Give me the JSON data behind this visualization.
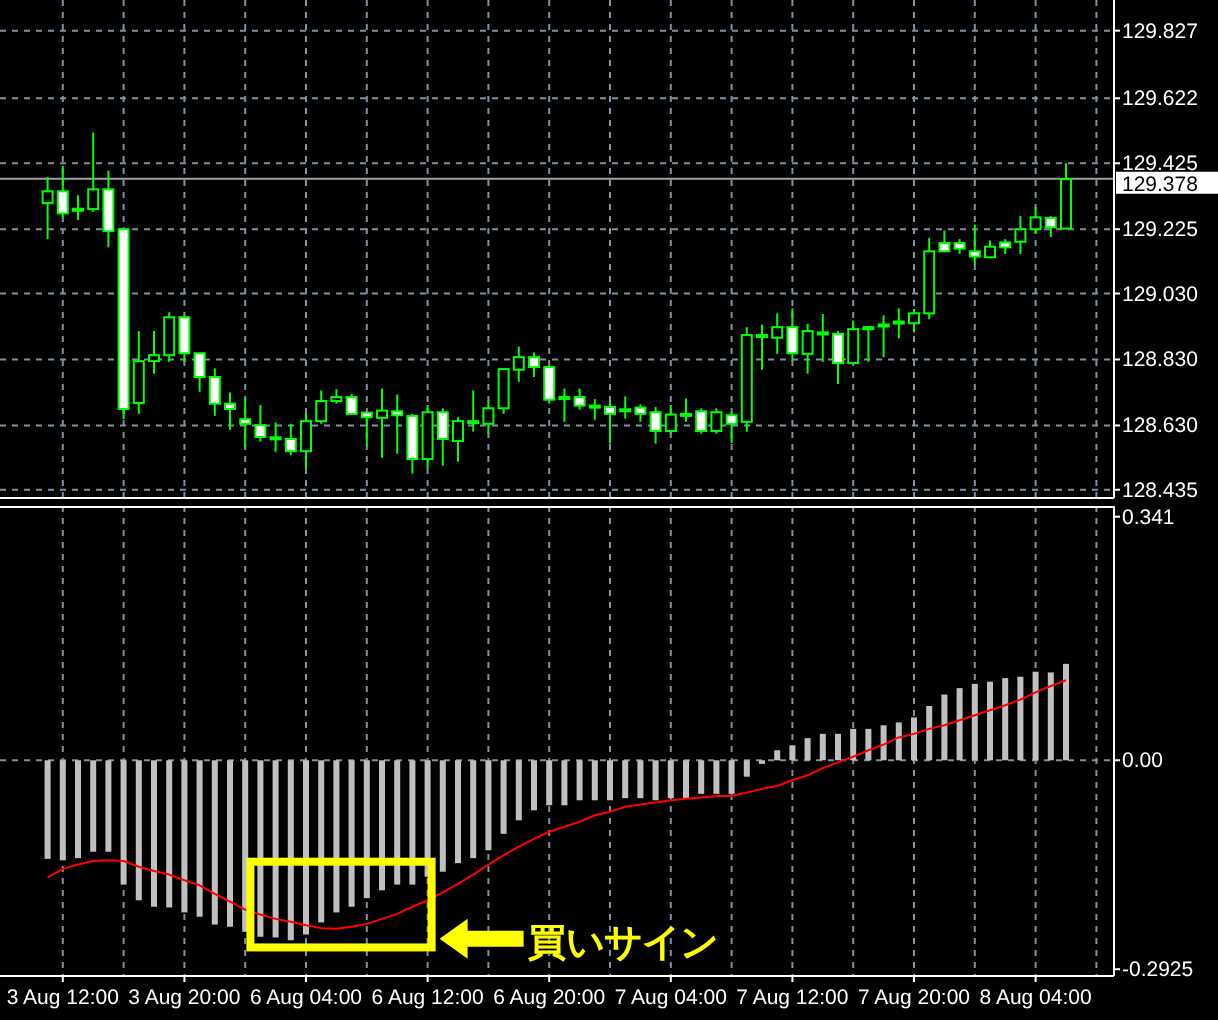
{
  "chart_data": [
    {
      "type": "candlestick",
      "color": "#00ff00",
      "tick_labels": "y",
      "grid": true,
      "categories": [
        null,
        null,
        null,
        null,
        null,
        null,
        null,
        null,
        null,
        null,
        null,
        null,
        null,
        null,
        null,
        null,
        null,
        null,
        null,
        null,
        null,
        null,
        null,
        null,
        null,
        null,
        null,
        null,
        null,
        null,
        null,
        null,
        null,
        null,
        null,
        null,
        null,
        null,
        null,
        null,
        null,
        null,
        null,
        null,
        null,
        null,
        null,
        null,
        null,
        null,
        null,
        null,
        null,
        null,
        null,
        null,
        null,
        null,
        null,
        null,
        null,
        null,
        null,
        null,
        null,
        null,
        null,
        null
      ],
      "ohlc": [
        [
          129.304,
          129.383,
          129.195,
          129.34
        ],
        [
          129.34,
          129.417,
          129.261,
          129.273
        ],
        [
          129.285,
          129.328,
          129.253,
          129.287
        ],
        [
          129.286,
          129.518,
          129.278,
          129.346
        ],
        [
          129.346,
          129.403,
          129.17,
          129.219
        ],
        [
          129.225,
          129.231,
          128.649,
          128.68
        ],
        [
          128.698,
          128.916,
          128.665,
          128.825
        ],
        [
          128.825,
          128.916,
          128.787,
          128.843
        ],
        [
          128.843,
          128.973,
          128.823,
          128.958
        ],
        [
          128.958,
          128.964,
          128.821,
          128.849
        ],
        [
          128.849,
          128.849,
          128.732,
          128.777
        ],
        [
          128.777,
          128.803,
          128.659,
          128.696
        ],
        [
          128.696,
          128.73,
          128.617,
          128.68
        ],
        [
          128.649,
          128.714,
          128.564,
          128.635
        ],
        [
          128.631,
          128.692,
          128.581,
          128.595
        ],
        [
          128.594,
          128.639,
          128.55,
          128.592
        ],
        [
          128.589,
          128.635,
          128.54,
          128.552
        ],
        [
          128.552,
          128.669,
          128.498,
          128.643
        ],
        [
          128.643,
          128.736,
          128.635,
          128.704
        ],
        [
          128.704,
          128.74,
          128.696,
          128.716
        ],
        [
          128.716,
          128.726,
          128.663,
          128.665
        ],
        [
          128.669,
          128.669,
          128.568,
          128.655
        ],
        [
          128.653,
          128.742,
          128.532,
          128.675
        ],
        [
          128.673,
          128.724,
          128.544,
          128.661
        ],
        [
          128.659,
          128.665,
          128.484,
          128.528
        ],
        [
          128.528,
          128.692,
          128.5,
          128.67
        ],
        [
          128.67,
          128.682,
          128.508,
          128.589
        ],
        [
          128.583,
          128.655,
          128.52,
          128.643
        ],
        [
          128.643,
          128.736,
          128.611,
          128.641
        ],
        [
          128.635,
          128.706,
          128.605,
          128.682
        ],
        [
          128.682,
          128.801,
          128.665,
          128.801
        ],
        [
          128.799,
          128.869,
          128.762,
          128.837
        ],
        [
          128.837,
          128.851,
          128.777,
          128.807
        ],
        [
          128.807,
          128.811,
          128.696,
          128.708
        ],
        [
          128.716,
          128.742,
          128.641,
          128.715
        ],
        [
          128.716,
          128.742,
          128.678,
          128.69
        ],
        [
          128.69,
          128.71,
          128.647,
          128.689
        ],
        [
          128.686,
          128.706,
          128.575,
          128.665
        ],
        [
          128.679,
          128.718,
          128.651,
          128.678
        ],
        [
          128.684,
          128.694,
          128.641,
          128.665
        ],
        [
          128.67,
          128.686,
          128.575,
          128.613
        ],
        [
          128.613,
          128.692,
          128.605,
          128.663
        ],
        [
          128.665,
          128.712,
          128.641,
          128.664
        ],
        [
          128.673,
          128.682,
          128.605,
          128.613
        ],
        [
          128.613,
          128.682,
          128.605,
          128.67
        ],
        [
          128.661,
          128.669,
          128.577,
          128.635
        ],
        [
          128.641,
          128.928,
          128.611,
          128.904
        ],
        [
          128.904,
          128.936,
          128.799,
          128.903
        ],
        [
          128.896,
          128.97,
          128.847,
          128.928
        ],
        [
          128.928,
          128.985,
          128.827,
          128.849
        ],
        [
          128.847,
          128.938,
          128.787,
          128.916
        ],
        [
          128.912,
          128.968,
          128.823,
          128.911
        ],
        [
          128.908,
          128.916,
          128.756,
          128.819
        ],
        [
          128.819,
          128.948,
          128.819,
          128.922
        ],
        [
          128.928,
          128.932,
          128.823,
          128.927
        ],
        [
          128.936,
          128.964,
          128.837,
          128.935
        ],
        [
          128.944,
          128.985,
          128.894,
          128.945
        ],
        [
          128.94,
          128.983,
          128.912,
          128.97
        ],
        [
          128.97,
          129.199,
          128.952,
          129.158
        ],
        [
          129.183,
          129.221,
          129.158,
          129.158
        ],
        [
          129.183,
          129.195,
          129.15,
          129.166
        ],
        [
          129.158,
          129.239,
          129.118,
          129.142
        ],
        [
          129.14,
          129.191,
          129.138,
          129.172
        ],
        [
          129.185,
          129.195,
          129.15,
          129.17
        ],
        [
          129.187,
          129.265,
          129.15,
          129.225
        ],
        [
          129.225,
          129.292,
          129.211,
          129.261
        ],
        [
          129.259,
          129.265,
          129.201,
          129.231
        ],
        [
          129.227,
          129.425,
          129.225,
          129.377
        ]
      ],
      "ylim": [
        128.41,
        129.92
      ],
      "yticks": [
        129.827,
        129.622,
        129.425,
        129.225,
        {
          "value": 129.03,
          "label": "129.030"
        },
        {
          "value": 128.83,
          "label": "128.830"
        },
        {
          "value": 128.63,
          "label": "128.630"
        },
        128.435
      ],
      "ref_lines": [
        {
          "axis": "y",
          "value": 129.378,
          "label": "129.378",
          "color": "#a0a0a0"
        }
      ]
    },
    {
      "type": "bar",
      "grid": "x",
      "categories": [
        null,
        "3 Aug 12:00",
        null,
        null,
        null,
        null,
        null,
        null,
        null,
        "3 Aug 20:00",
        null,
        null,
        null,
        null,
        null,
        null,
        null,
        "6 Aug 04:00",
        null,
        null,
        null,
        null,
        null,
        null,
        null,
        "6 Aug 12:00",
        null,
        null,
        null,
        null,
        null,
        null,
        null,
        "6 Aug 20:00",
        null,
        null,
        null,
        null,
        null,
        null,
        null,
        "7 Aug 04:00",
        null,
        null,
        null,
        null,
        null,
        null,
        null,
        "7 Aug 12:00",
        null,
        null,
        null,
        null,
        null,
        null,
        null,
        "7 Aug 20:00",
        null,
        null,
        null,
        null,
        null,
        null,
        null,
        "8 Aug 04:00",
        null,
        null
      ],
      "series": [
        {
          "type": "bar",
          "color": "#c0c0c0",
          "values": [
            -0.138,
            -0.14,
            -0.137,
            -0.128,
            -0.128,
            -0.174,
            -0.196,
            -0.205,
            -0.206,
            -0.213,
            -0.219,
            -0.23,
            -0.233,
            -0.24,
            -0.247,
            -0.248,
            -0.252,
            -0.244,
            -0.227,
            -0.213,
            -0.205,
            -0.193,
            -0.182,
            -0.174,
            -0.174,
            -0.163,
            -0.156,
            -0.144,
            -0.137,
            -0.126,
            -0.103,
            -0.084,
            -0.07,
            -0.063,
            -0.063,
            -0.056,
            -0.056,
            -0.056,
            -0.053,
            -0.053,
            -0.056,
            -0.053,
            -0.053,
            -0.047,
            -0.047,
            -0.047,
            -0.023,
            -0.005,
            0.014,
            0.021,
            0.031,
            0.037,
            0.037,
            0.044,
            0.044,
            0.049,
            0.053,
            0.06,
            0.076,
            0.092,
            0.101,
            0.107,
            0.11,
            0.115,
            0.117,
            0.124,
            0.123,
            0.135
          ]
        },
        {
          "type": "line",
          "color": "#ff0000",
          "values": [
            -0.164,
            -0.152,
            -0.146,
            -0.141,
            -0.14,
            -0.141,
            -0.149,
            -0.155,
            -0.16,
            -0.168,
            -0.175,
            -0.187,
            -0.198,
            -0.209,
            -0.216,
            -0.222,
            -0.226,
            -0.231,
            -0.235,
            -0.236,
            -0.233,
            -0.229,
            -0.222,
            -0.215,
            -0.205,
            -0.196,
            -0.185,
            -0.173,
            -0.16,
            -0.146,
            -0.133,
            -0.121,
            -0.11,
            -0.1,
            -0.093,
            -0.086,
            -0.077,
            -0.072,
            -0.065,
            -0.062,
            -0.059,
            -0.056,
            -0.054,
            -0.052,
            -0.05,
            -0.05,
            -0.045,
            -0.04,
            -0.036,
            -0.028,
            -0.021,
            -0.011,
            -0.003,
            0.005,
            0.014,
            0.022,
            0.032,
            0.037,
            0.044,
            0.049,
            0.056,
            0.063,
            0.07,
            0.077,
            0.085,
            0.095,
            0.104,
            0.112
          ]
        }
      ],
      "ylim": [
        -0.302,
        0.356
      ],
      "yticks": [
        0.341,
        {
          "value": 0,
          "label": "0.00"
        },
        -0.2925
      ],
      "ref_lines": [
        {
          "axis": "y",
          "value": 0,
          "color": "#8090a0",
          "line_style": "dashed"
        }
      ],
      "annotations": [
        "買いサイン"
      ]
    }
  ]
}
